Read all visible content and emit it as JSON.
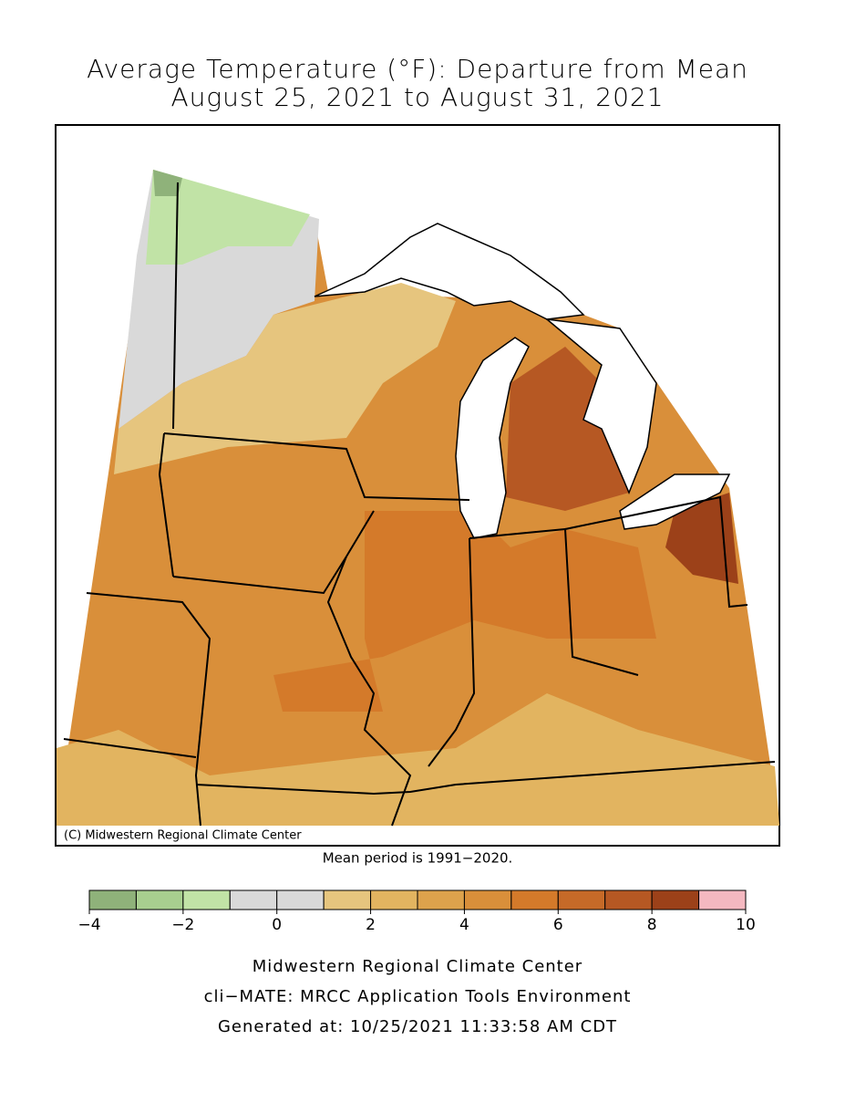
{
  "title": [
    "Average Temperature (°F): Departure from Mean",
    "August 25, 2021 to August 31, 2021"
  ],
  "map": {
    "credit": "(C) Midwestern Regional Climate Center"
  },
  "note": "Mean period is 1991−2020.",
  "colorbar": {
    "levels": [
      -4,
      -3,
      -2,
      -1,
      0,
      1,
      2,
      3,
      4,
      5,
      6,
      7,
      8,
      9,
      10
    ],
    "colors": [
      "#8fb27a",
      "#a8cf8f",
      "#c1e3a6",
      "#d9d9d9",
      "#d9d9d9",
      "#e6c57e",
      "#e2b460",
      "#dda24c",
      "#d98f3a",
      "#d47a2a",
      "#c66a28",
      "#b65823",
      "#9c4119",
      "#f4b8c0"
    ],
    "ticks": [
      {
        "value": -4,
        "label": "−4"
      },
      {
        "value": -2,
        "label": "−2"
      },
      0,
      2,
      4,
      6,
      8,
      10
    ]
  },
  "footer": [
    "Midwestern Regional Climate Center",
    "cli−MATE: MRCC Application Tools Environment",
    "Generated at: 10/25/2021 11:33:58 AM CDT"
  ]
}
